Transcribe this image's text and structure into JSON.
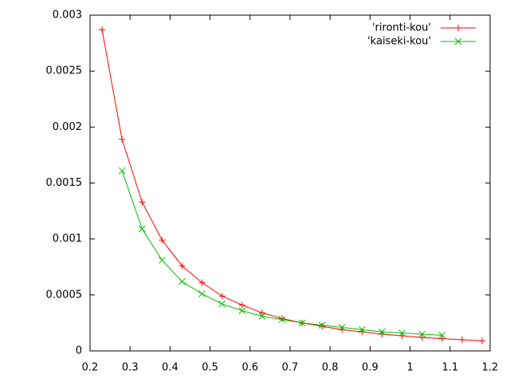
{
  "chart_data": {
    "type": "line",
    "xlim": [
      0.2,
      1.2
    ],
    "xticks": [
      0.2,
      0.3,
      0.4,
      0.5,
      0.6,
      0.7,
      0.8,
      0.9,
      1,
      1.1,
      1.2
    ],
    "ylim": [
      0,
      0.003
    ],
    "yticks": [
      0,
      0.0005,
      0.001,
      0.0015,
      0.002,
      0.0025,
      0.003
    ],
    "legend": "top-right",
    "series": [
      {
        "name": "'rironti-kou'",
        "color": "#ff0000",
        "marker": "plus",
        "x": [
          0.23,
          0.28,
          0.33,
          0.38,
          0.43,
          0.48,
          0.53,
          0.58,
          0.63,
          0.68,
          0.73,
          0.78,
          0.83,
          0.88,
          0.93,
          0.98,
          1.03,
          1.08,
          1.13,
          1.18
        ],
        "values": [
          0.00287,
          0.00189,
          0.00133,
          0.00099,
          0.00076,
          0.00061,
          0.00049,
          0.00041,
          0.00034,
          0.00029,
          0.00025,
          0.00022,
          0.00019,
          0.00017,
          0.00015,
          0.000135,
          0.00012,
          0.00011,
          0.0001,
          9e-05
        ]
      },
      {
        "name": "'kaiseki-kou'",
        "color": "#00c000",
        "marker": "cross",
        "x": [
          0.28,
          0.33,
          0.38,
          0.43,
          0.48,
          0.53,
          0.58,
          0.63,
          0.68,
          0.73,
          0.78,
          0.83,
          0.88,
          0.93,
          0.98,
          1.03,
          1.08
        ],
        "values": [
          0.00161,
          0.00109,
          0.00081,
          0.00062,
          0.00051,
          0.00042,
          0.00036,
          0.00031,
          0.00028,
          0.00025,
          0.00023,
          0.00021,
          0.00019,
          0.00017,
          0.00016,
          0.00015,
          0.00014
        ]
      }
    ]
  }
}
